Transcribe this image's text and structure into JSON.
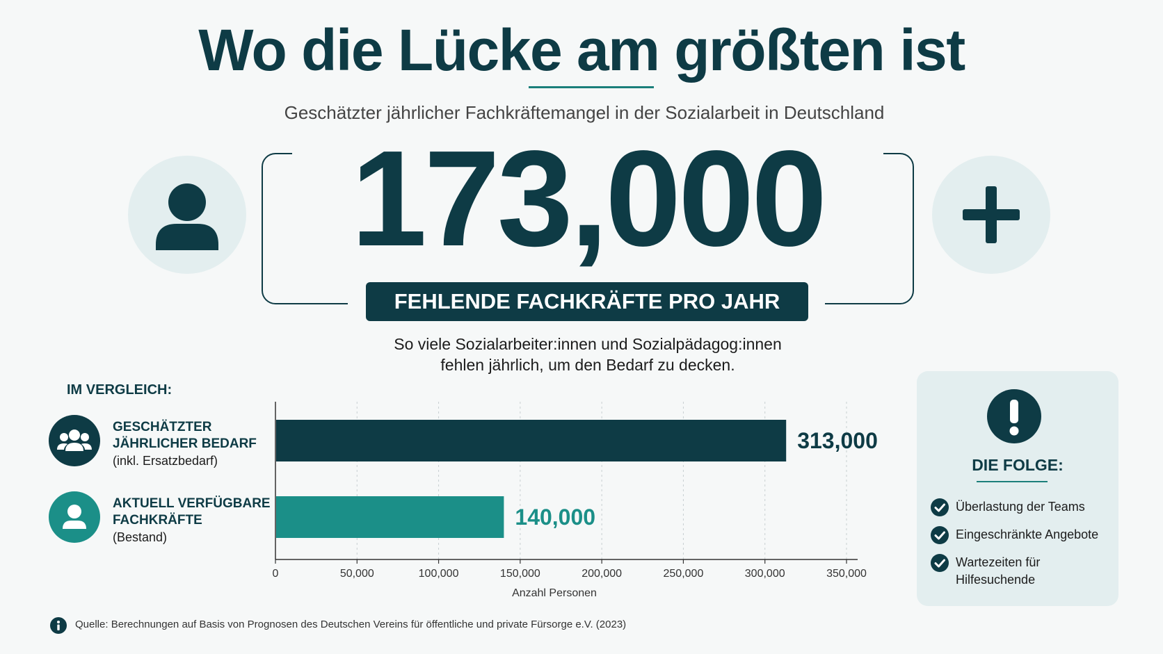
{
  "header": {
    "title": "Wo die Lücke am größten ist",
    "subtitle": "Geschätzter jährlicher Fachkräftemangel in der Sozialarbeit in Deutschland"
  },
  "hero": {
    "number": "173,000",
    "banner": "FEHLENDE FACHKRÄFTE PRO JAHR",
    "description_line1": "So viele Sozialarbeiter:innen und Sozialpädagog:innen",
    "description_line2": "fehlen jährlich, um den Bedarf zu decken.",
    "left_icon": "person-icon",
    "right_icon": "plus-icon"
  },
  "comparison": {
    "heading": "IM VERGLEICH:",
    "items": [
      {
        "label_line1": "GESCHÄTZTER",
        "label_line2": "JÄHRLICHER BEDARF",
        "sub": "(inkl. Ersatzbedarf)",
        "icon": "group-icon"
      },
      {
        "label_line1": "AKTUELL VERFÜGBARE",
        "label_line2": "FACHKRÄFTE",
        "sub": "(Bestand)",
        "icon": "person-icon"
      }
    ]
  },
  "chart_data": {
    "type": "bar",
    "orientation": "horizontal",
    "categories": [
      "Geschätzter jährlicher Bedarf",
      "Aktuell verfügbare Fachkräfte"
    ],
    "values": [
      313000,
      140000
    ],
    "value_labels": [
      "313,000",
      "140,000"
    ],
    "colors": [
      "#0e3b45",
      "#1b8f88"
    ],
    "xlabel": "Anzahl Personen",
    "xlim": [
      0,
      350000
    ],
    "xticks": [
      0,
      50000,
      100000,
      150000,
      200000,
      250000,
      300000,
      350000
    ],
    "xtick_labels": [
      "0",
      "50,000",
      "100,000",
      "150,000",
      "200,000",
      "250,000",
      "300,000",
      "350,000"
    ],
    "grid": "vertical dashed"
  },
  "panel": {
    "title": "DIE FOLGE:",
    "icon": "exclamation-icon",
    "items": [
      {
        "line1": "Überlastung der Teams",
        "line2": ""
      },
      {
        "line1": "Eingeschränkte Angebote",
        "line2": ""
      },
      {
        "line1": "Wartezeiten für",
        "line2": "Hilfesuchende"
      }
    ]
  },
  "source": {
    "icon": "info-icon",
    "text": "Quelle: Berechnungen auf Basis von Prognosen des Deutschen Vereins für öffentliche und private Fürsorge e.V. (2023)"
  }
}
